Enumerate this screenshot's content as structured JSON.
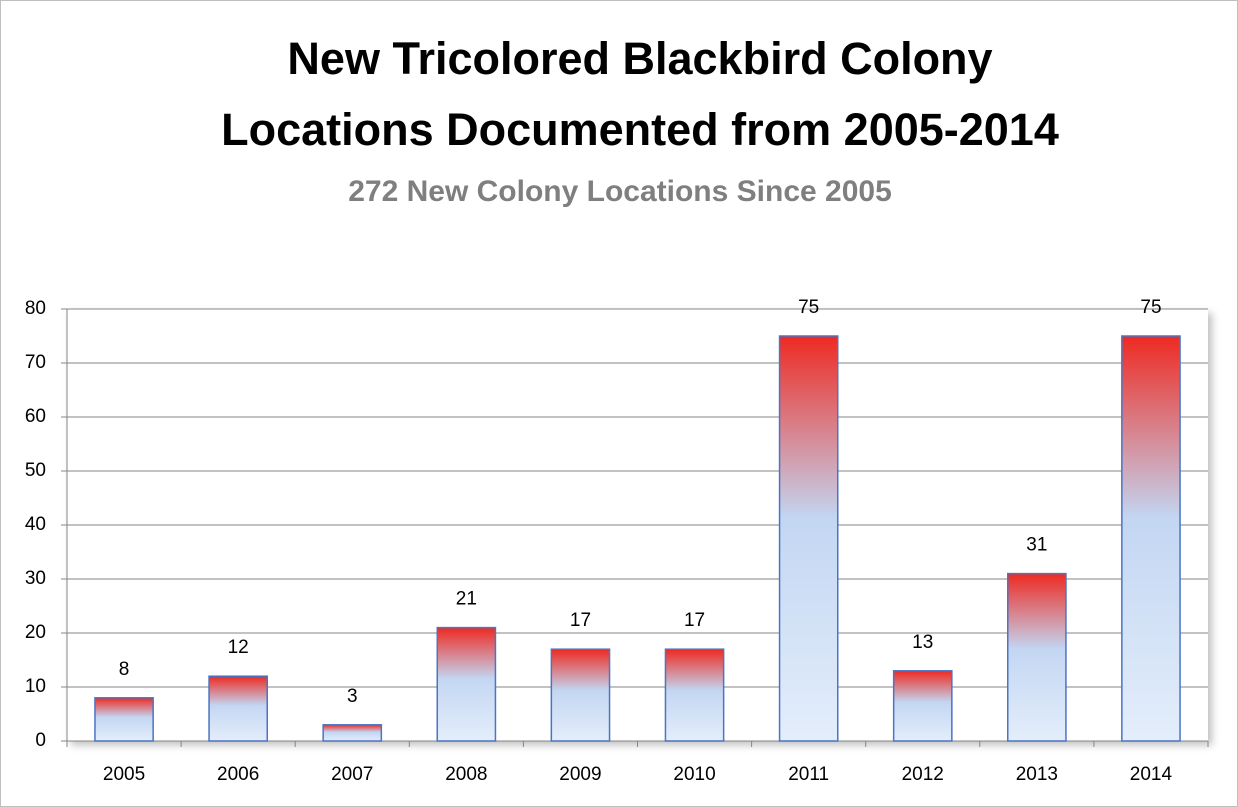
{
  "chart_data": {
    "type": "bar",
    "title": [
      "New Tricolored Blackbird Colony",
      "Locations Documented from 2005-2014"
    ],
    "subtitle": "272 New Colony Locations Since 2005",
    "categories": [
      "2005",
      "2006",
      "2007",
      "2008",
      "2009",
      "2010",
      "2011",
      "2012",
      "2013",
      "2014"
    ],
    "values": [
      8,
      12,
      3,
      21,
      17,
      17,
      75,
      13,
      31,
      75
    ],
    "colors": {
      "top": "#ee2a22",
      "middle": "#c3d6f2",
      "bottom": "#e4eefb",
      "edge": "#4a74c4"
    },
    "ylim": [
      0,
      80
    ],
    "yticks": [
      0,
      10,
      20,
      30,
      40,
      50,
      60,
      70,
      80
    ],
    "grid": true
  }
}
